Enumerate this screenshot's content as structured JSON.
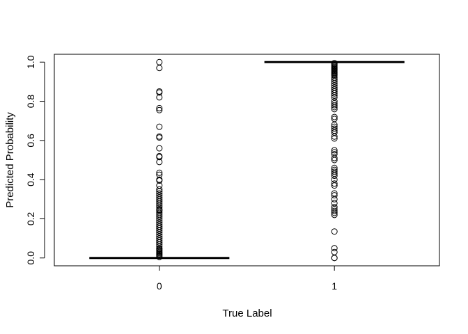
{
  "chart_data": {
    "type": "boxplot",
    "title": "",
    "xlabel": "True Label",
    "ylabel": "Predicted Probability",
    "categories": [
      "0",
      "1"
    ],
    "ylim": [
      -0.04,
      1.04
    ],
    "yticks": [
      "0.0",
      "0.2",
      "0.4",
      "0.6",
      "0.8",
      "1.0"
    ],
    "ytick_values": [
      0,
      0.2,
      0.4,
      0.6,
      0.8,
      1.0
    ],
    "grid": false,
    "legend": "none",
    "boxes": [
      {
        "category": "0",
        "median": 0.0,
        "q1": 0.0,
        "q3": 0.0,
        "whisker_low": 0.0,
        "whisker_high": 0.0,
        "outliers": [
          1.0,
          0.97,
          0.85,
          0.845,
          0.82,
          0.765,
          0.755,
          0.67,
          0.62,
          0.615,
          0.56,
          0.52,
          0.515,
          0.49,
          0.435,
          0.425,
          0.4,
          0.395,
          0.37,
          0.35,
          0.34,
          0.33,
          0.32,
          0.31,
          0.3,
          0.29,
          0.28,
          0.27,
          0.26,
          0.25,
          0.245,
          0.24,
          0.23,
          0.22,
          0.21,
          0.2,
          0.19,
          0.18,
          0.17,
          0.16,
          0.15,
          0.14,
          0.13,
          0.12,
          0.11,
          0.1,
          0.09,
          0.08,
          0.07,
          0.06,
          0.05,
          0.045,
          0.04,
          0.035,
          0.03,
          0.025,
          0.02,
          0.015,
          0.01,
          0.005
        ]
      },
      {
        "category": "1",
        "median": 1.0,
        "q1": 1.0,
        "q3": 1.0,
        "whisker_low": 1.0,
        "whisker_high": 1.0,
        "outliers": [
          0.995,
          0.99,
          0.985,
          0.98,
          0.975,
          0.97,
          0.965,
          0.96,
          0.955,
          0.95,
          0.945,
          0.94,
          0.935,
          0.93,
          0.92,
          0.91,
          0.9,
          0.89,
          0.88,
          0.87,
          0.86,
          0.85,
          0.84,
          0.83,
          0.82,
          0.8,
          0.79,
          0.78,
          0.77,
          0.76,
          0.72,
          0.71,
          0.68,
          0.67,
          0.66,
          0.65,
          0.64,
          0.62,
          0.61,
          0.55,
          0.54,
          0.53,
          0.51,
          0.5,
          0.46,
          0.45,
          0.44,
          0.43,
          0.42,
          0.4,
          0.38,
          0.37,
          0.33,
          0.32,
          0.3,
          0.28,
          0.26,
          0.25,
          0.24,
          0.23,
          0.22,
          0.135,
          0.05,
          0.03,
          0.0,
          0.0
        ]
      }
    ]
  }
}
